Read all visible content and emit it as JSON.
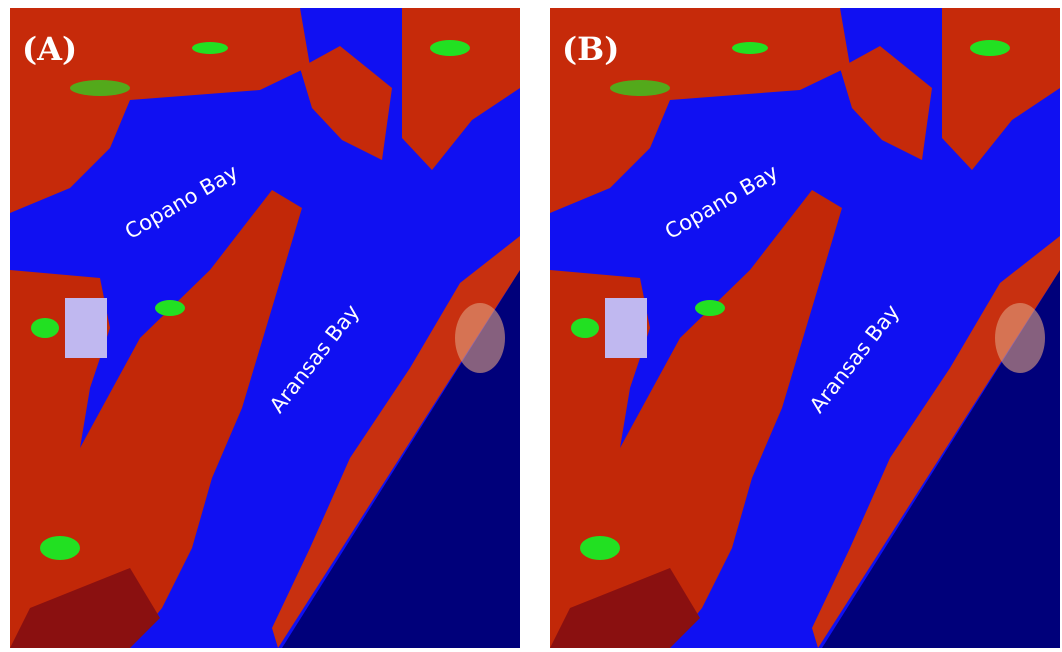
{
  "panels": [
    {
      "label": "(A)",
      "bays": [
        "Copano Bay",
        "Aransas Bay"
      ]
    },
    {
      "label": "(B)",
      "bays": [
        "Copano Bay",
        "Aransas Bay"
      ]
    }
  ]
}
